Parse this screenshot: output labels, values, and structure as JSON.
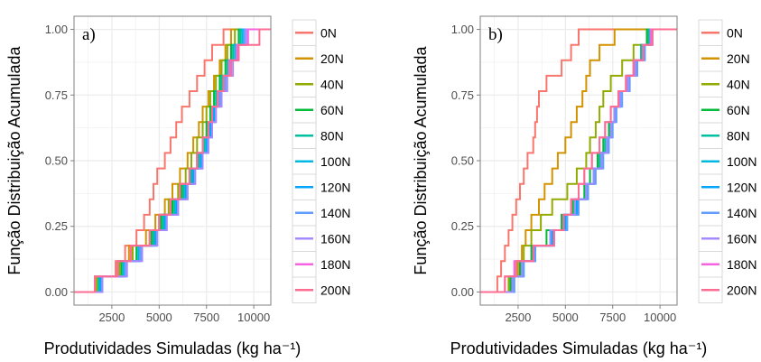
{
  "colors": {
    "0N": "#F8766D",
    "20N": "#D39200",
    "40N": "#93AA00",
    "60N": "#00BA38",
    "80N": "#00C19F",
    "100N": "#00B9E3",
    "120N": "#00A5FF",
    "140N": "#619CFF",
    "160N": "#A58AFF",
    "180N": "#F562E3",
    "200N": "#FF6C91",
    "panel_bg": "#FFFFFF",
    "grid": "#EBEBEB",
    "frame": "#7F7F7F",
    "text": "#4D4D4D"
  },
  "chart_data": [
    {
      "type": "line",
      "panel_label": "a)",
      "xlabel": "Produtividades Simuladas (kg ha⁻¹)",
      "ylabel": "Função Distribuição Acumulada",
      "xlim": [
        500,
        10900
      ],
      "ylim": [
        -0.05,
        1.05
      ],
      "xticks": [
        "2500",
        "5000",
        "7500",
        "10000"
      ],
      "yticks": [
        "0.00",
        "0.25",
        "0.50",
        "0.75",
        "1.00"
      ],
      "legend": [
        "0N",
        "20N",
        "40N",
        "60N",
        "80N",
        "100N",
        "120N",
        "140N",
        "160N",
        "180N",
        "200N"
      ],
      "legend_position": "right",
      "grid": true,
      "series": [
        {
          "name": "0N",
          "x": [
            1600,
            2700,
            3200,
            3800,
            4200,
            4500,
            4700,
            4900,
            5300,
            5600,
            5900,
            6200,
            6600,
            7000,
            7400,
            7800,
            8400
          ]
        },
        {
          "name": "20N",
          "x": [
            1600,
            2800,
            3400,
            4300,
            4800,
            5300,
            5700,
            6100,
            6500,
            6800,
            7100,
            7300,
            7600,
            7900,
            8200,
            8500,
            8800
          ]
        },
        {
          "name": "40N",
          "x": [
            1700,
            2900,
            3600,
            4500,
            5000,
            5500,
            6000,
            6400,
            6700,
            7000,
            7300,
            7500,
            7700,
            8000,
            8300,
            8600,
            9000
          ]
        },
        {
          "name": "60N",
          "x": [
            1800,
            3000,
            3800,
            4600,
            5100,
            5700,
            6200,
            6600,
            7000,
            7300,
            7500,
            7700,
            7900,
            8200,
            8500,
            8800,
            9200
          ]
        },
        {
          "name": "80N",
          "x": [
            1800,
            3100,
            3900,
            4700,
            5200,
            5800,
            6300,
            6700,
            7100,
            7400,
            7600,
            7800,
            8000,
            8300,
            8600,
            8900,
            9300
          ]
        },
        {
          "name": "100N",
          "x": [
            1900,
            3100,
            3900,
            4800,
            5300,
            5900,
            6400,
            6800,
            7200,
            7500,
            7700,
            7900,
            8100,
            8400,
            8700,
            9000,
            9400
          ]
        },
        {
          "name": "120N",
          "x": [
            1900,
            3200,
            4000,
            4800,
            5300,
            5900,
            6400,
            6800,
            7200,
            7500,
            7700,
            7900,
            8200,
            8500,
            8800,
            9100,
            9500
          ]
        },
        {
          "name": "140N",
          "x": [
            2000,
            3200,
            4000,
            4900,
            5400,
            6000,
            6500,
            6900,
            7300,
            7600,
            7800,
            8000,
            8200,
            8500,
            8800,
            9100,
            9500
          ]
        },
        {
          "name": "160N",
          "x": [
            2000,
            3300,
            4100,
            4900,
            5400,
            6000,
            6500,
            6900,
            7300,
            7600,
            7800,
            8000,
            8300,
            8600,
            8900,
            9200,
            9600
          ]
        },
        {
          "name": "180N",
          "x": [
            1600,
            2800,
            3500,
            4500,
            5000,
            5600,
            6100,
            6600,
            7000,
            7300,
            7600,
            7800,
            8100,
            8400,
            8700,
            9100,
            9700
          ]
        },
        {
          "name": "200N",
          "x": [
            1600,
            2800,
            3500,
            4500,
            5000,
            5600,
            6100,
            6600,
            7000,
            7300,
            7600,
            7800,
            8100,
            8400,
            8800,
            9200,
            10300
          ]
        }
      ]
    },
    {
      "type": "line",
      "panel_label": "b)",
      "xlabel": "Produtividades Simuladas (kg ha⁻¹)",
      "ylabel": "Função Distribuição Acumulada",
      "xlim": [
        500,
        10900
      ],
      "ylim": [
        -0.05,
        1.05
      ],
      "xticks": [
        "2500",
        "5000",
        "7500",
        "10000"
      ],
      "yticks": [
        "0.00",
        "0.25",
        "0.50",
        "0.75",
        "1.00"
      ],
      "legend": [
        "0N",
        "20N",
        "40N",
        "60N",
        "80N",
        "100N",
        "120N",
        "140N",
        "160N",
        "180N",
        "200N"
      ],
      "legend_position": "right",
      "grid": true,
      "series": [
        {
          "name": "0N",
          "x": [
            1400,
            1600,
            1800,
            2000,
            2200,
            2400,
            2600,
            2800,
            3000,
            3300,
            3400,
            3500,
            3600,
            4000,
            4800,
            5300,
            5700
          ]
        },
        {
          "name": "20N",
          "x": [
            2100,
            2500,
            2700,
            2900,
            3200,
            3600,
            3900,
            4300,
            4600,
            5000,
            5300,
            5600,
            5900,
            6100,
            6300,
            6800,
            7600
          ]
        },
        {
          "name": "40N",
          "x": [
            2000,
            2400,
            2800,
            3200,
            3700,
            4300,
            5100,
            5600,
            6100,
            6300,
            6600,
            6800,
            7000,
            7400,
            8000,
            8600,
            9400
          ]
        },
        {
          "name": "60N",
          "x": [
            2100,
            2600,
            3200,
            4000,
            4800,
            5400,
            6000,
            6300,
            6700,
            7000,
            7300,
            7600,
            7800,
            8200,
            8600,
            9000,
            9300
          ]
        },
        {
          "name": "80N",
          "x": [
            2200,
            2700,
            3300,
            4200,
            4900,
            5500,
            6100,
            6500,
            6800,
            7100,
            7400,
            7600,
            7900,
            8300,
            8700,
            9000,
            9400
          ]
        },
        {
          "name": "100N",
          "x": [
            2300,
            2800,
            3400,
            4300,
            5000,
            5600,
            6100,
            6500,
            6900,
            7200,
            7400,
            7600,
            7900,
            8300,
            8700,
            9100,
            9500
          ]
        },
        {
          "name": "120N",
          "x": [
            2200,
            2700,
            3400,
            4300,
            5000,
            5600,
            6100,
            6500,
            6900,
            7200,
            7400,
            7600,
            7900,
            8300,
            8700,
            9100,
            9500
          ]
        },
        {
          "name": "140N",
          "x": [
            2300,
            2800,
            3400,
            4400,
            5100,
            5700,
            6200,
            6600,
            7000,
            7300,
            7500,
            7700,
            8000,
            8400,
            8800,
            9200,
            9600
          ]
        },
        {
          "name": "160N",
          "x": [
            2200,
            2700,
            3300,
            4200,
            4900,
            5500,
            6100,
            6500,
            6900,
            7200,
            7400,
            7600,
            7900,
            8300,
            8700,
            9100,
            9500
          ]
        },
        {
          "name": "180N",
          "x": [
            1800,
            2300,
            3300,
            4400,
            4900,
            5300,
            5700,
            6000,
            6400,
            6800,
            7100,
            7400,
            7800,
            8200,
            8600,
            9100,
            9500
          ]
        },
        {
          "name": "200N",
          "x": [
            1800,
            2400,
            3300,
            4400,
            4900,
            5300,
            5700,
            6000,
            6400,
            6800,
            7100,
            7400,
            7800,
            8200,
            8600,
            9100,
            9600
          ]
        }
      ]
    }
  ]
}
